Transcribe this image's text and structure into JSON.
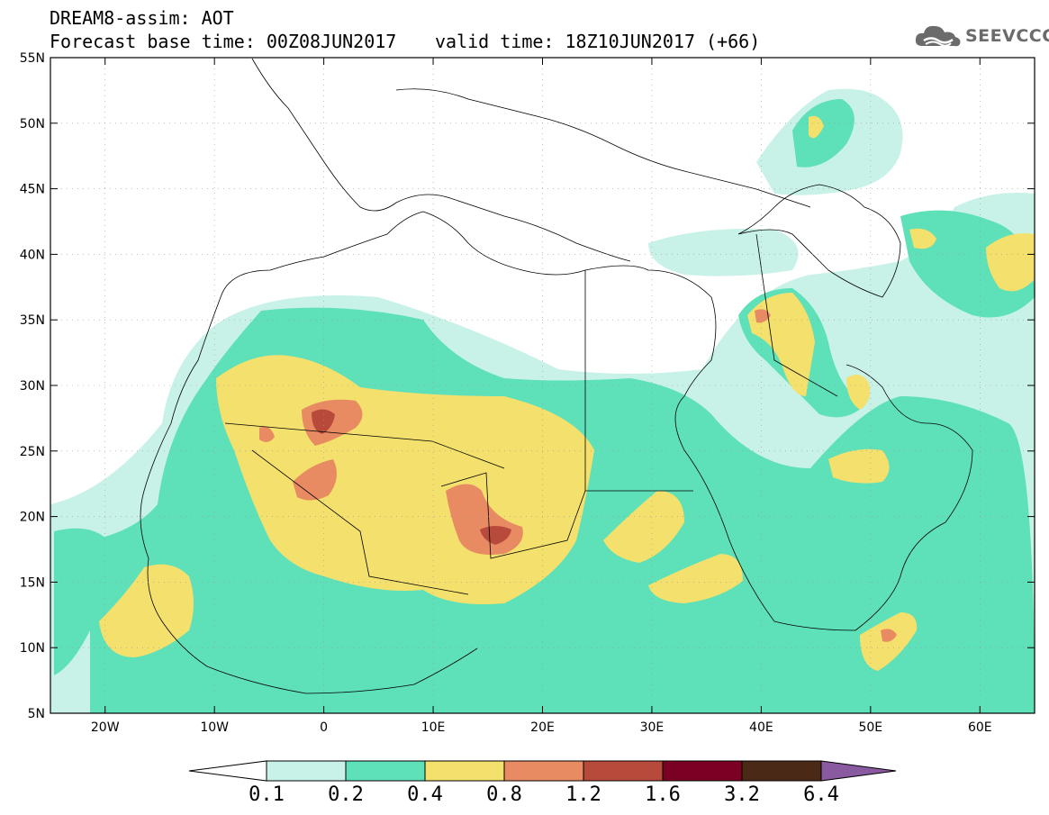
{
  "header": {
    "title_line1": "DREAM8-assim: AOT",
    "title_line2": "Forecast base time: 00Z08JUN2017",
    "valid_time": "valid time: 18Z10JUN2017 (+66)"
  },
  "logo": {
    "text": "SEEVCCC",
    "icon": "cloud-logo-icon"
  },
  "axes": {
    "lat_labels": [
      "55N",
      "50N",
      "45N",
      "40N",
      "35N",
      "30N",
      "25N",
      "20N",
      "15N",
      "10N",
      "5N"
    ],
    "lon_labels": [
      "20W",
      "10W",
      "0",
      "10E",
      "20E",
      "30E",
      "40E",
      "50E",
      "60E"
    ]
  },
  "colorbar": {
    "labels": [
      "0.1",
      "0.2",
      "0.4",
      "0.8",
      "1.2",
      "1.6",
      "3.2",
      "6.4"
    ],
    "colors": [
      "#ffffff",
      "#c8f2e8",
      "#5ee0b9",
      "#f4e06c",
      "#e88a62",
      "#b84a3c",
      "#7a0024",
      "#4a2a16",
      "#8a5aa0"
    ]
  },
  "map_colors": {
    "c1": "#c8f2e8",
    "c2": "#5ee0b9",
    "c3": "#f4e06c",
    "c4": "#e88a62",
    "c5": "#b84a3c",
    "c6": "#7a3030"
  }
}
